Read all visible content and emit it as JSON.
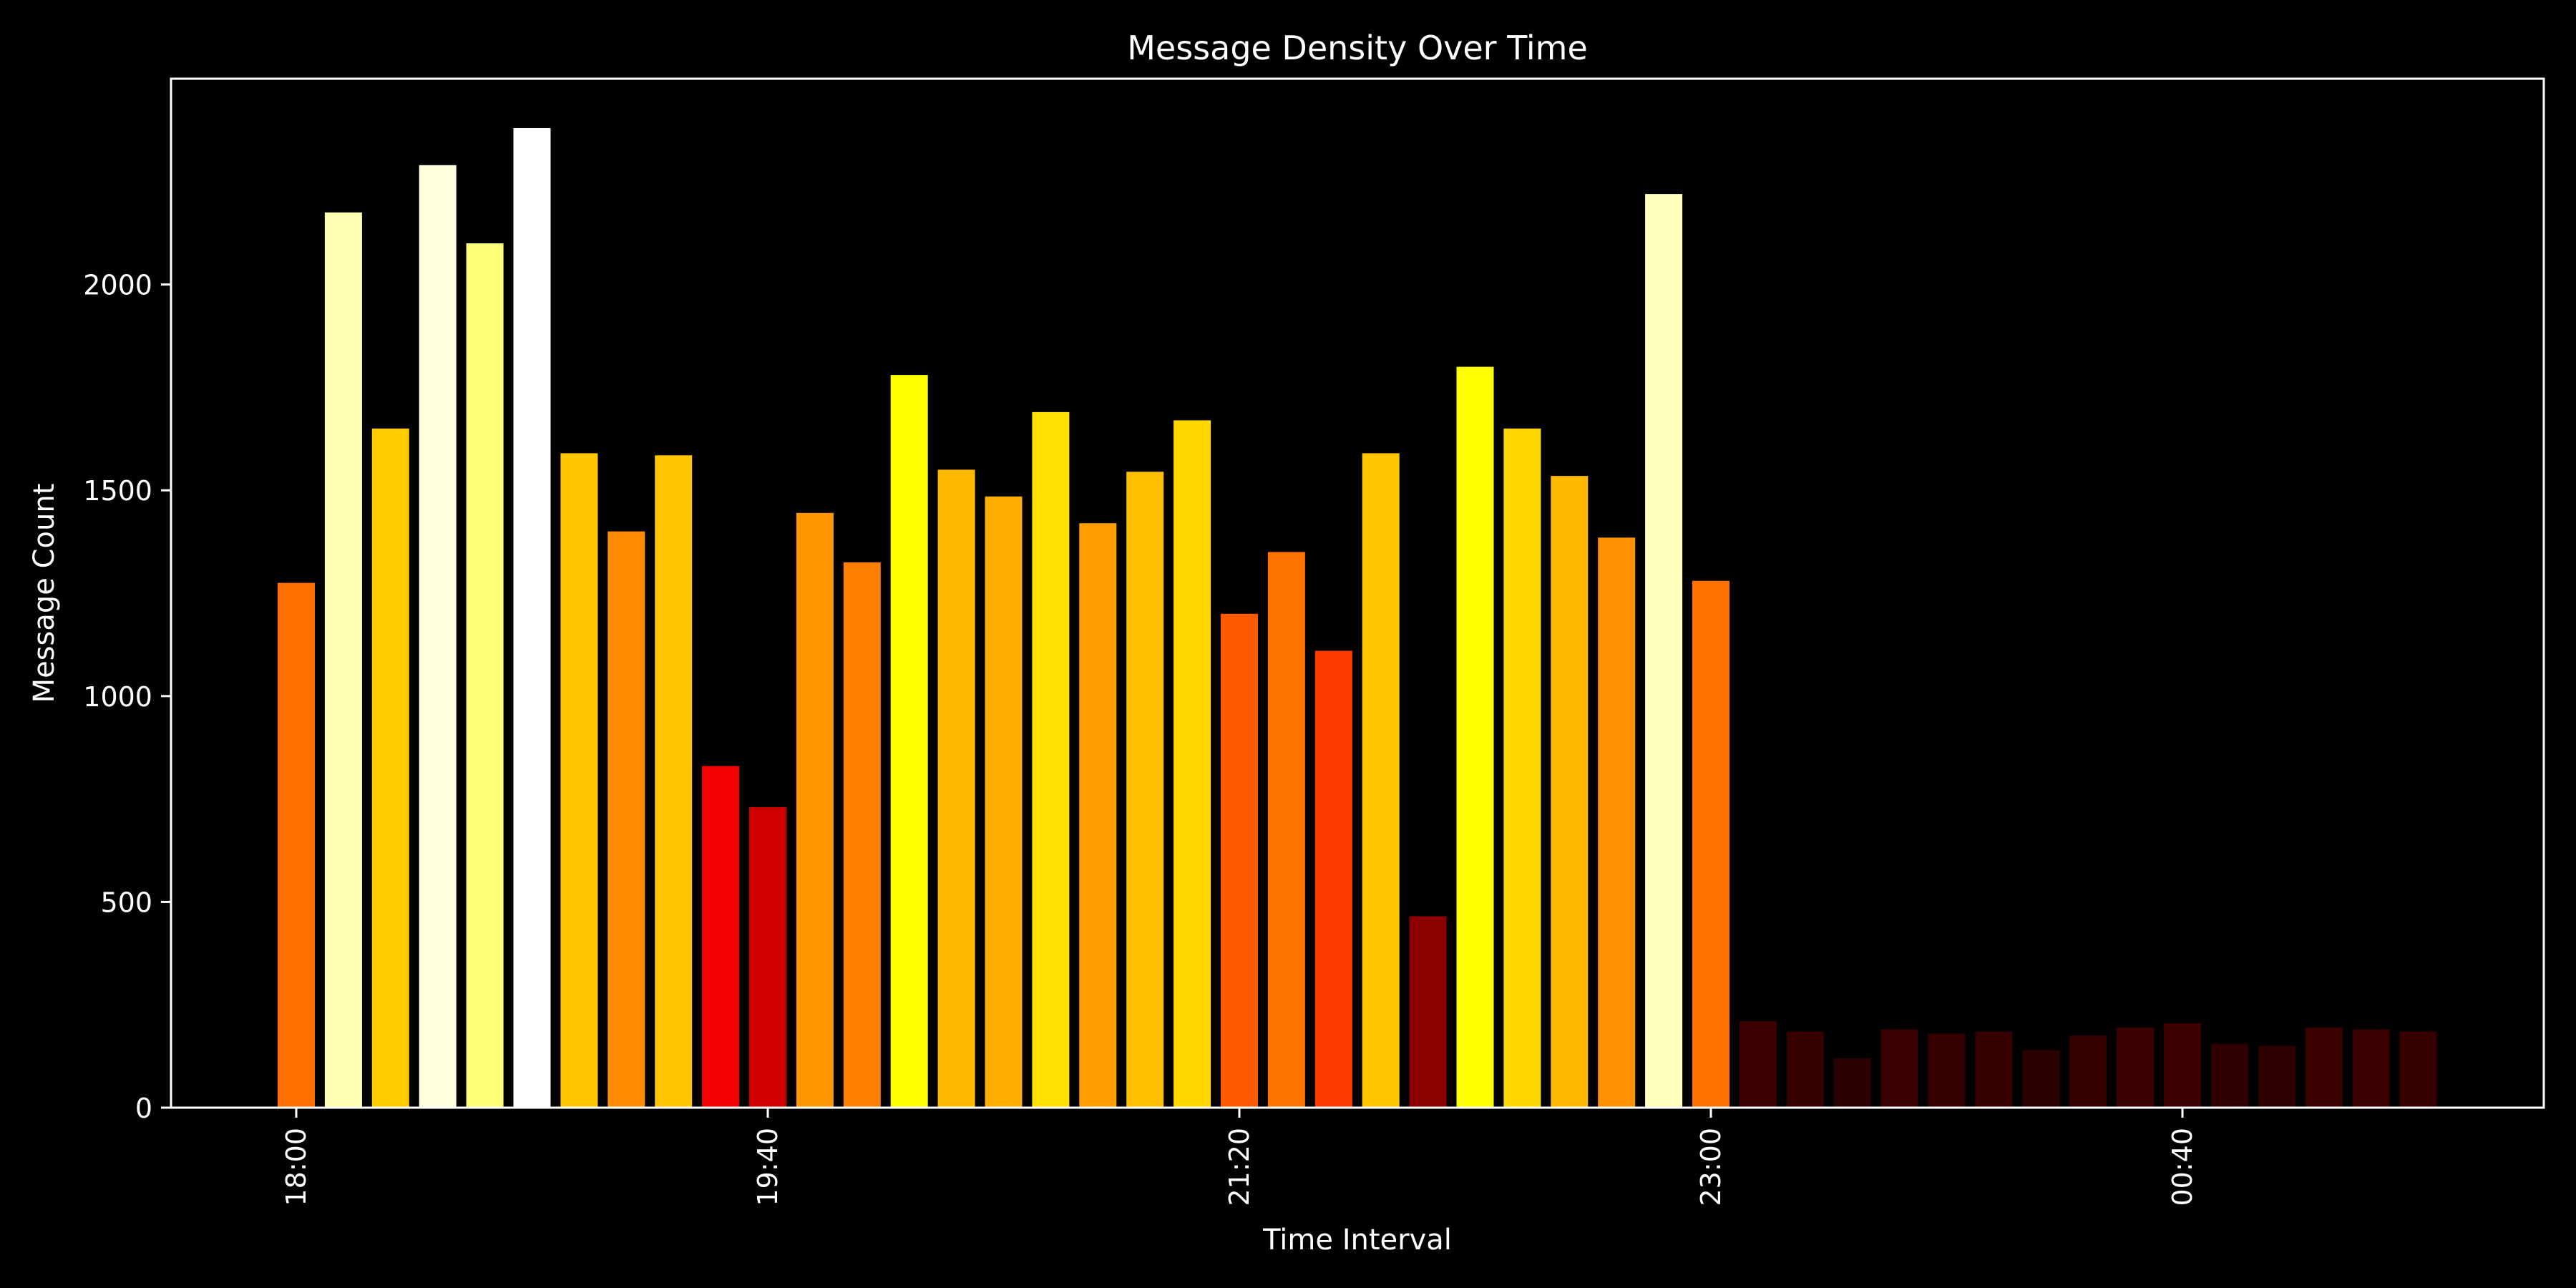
{
  "chart_data": {
    "type": "bar",
    "title": "Message Density Over Time",
    "xlabel": "Time Interval",
    "ylabel": "Message Count",
    "ylim": [
      0,
      2500
    ],
    "yticks": [
      0,
      500,
      1000,
      1500,
      2000
    ],
    "interval_minutes": 10,
    "xticks": [
      {
        "label": "18:00",
        "index": 0
      },
      {
        "label": "19:40",
        "index": 10
      },
      {
        "label": "21:20",
        "index": 20
      },
      {
        "label": "23:00",
        "index": 30
      },
      {
        "label": "00:40",
        "index": 40
      }
    ],
    "categories": [
      "18:00",
      "18:10",
      "18:20",
      "18:30",
      "18:40",
      "18:50",
      "19:00",
      "19:10",
      "19:20",
      "19:30",
      "19:40",
      "19:50",
      "20:00",
      "20:10",
      "20:20",
      "20:30",
      "20:40",
      "20:50",
      "21:00",
      "21:10",
      "21:20",
      "21:30",
      "21:40",
      "21:50",
      "22:00",
      "22:10",
      "22:20",
      "22:30",
      "22:40",
      "22:50",
      "23:00",
      "23:10",
      "23:20",
      "23:30",
      "23:40",
      "23:50",
      "00:00",
      "00:10",
      "00:20",
      "00:30",
      "00:40",
      "00:50",
      "01:00",
      "01:10",
      "01:20",
      "01:30"
    ],
    "values": [
      1275,
      2175,
      1650,
      2290,
      2100,
      2380,
      1590,
      1400,
      1585,
      830,
      730,
      1445,
      1325,
      1780,
      1550,
      1485,
      1690,
      1420,
      1545,
      1670,
      1200,
      1350,
      1110,
      1590,
      465,
      1800,
      1650,
      1535,
      1385,
      2220,
      1280,
      210,
      185,
      120,
      190,
      180,
      185,
      140,
      175,
      195,
      205,
      155,
      150,
      195,
      190,
      185
    ],
    "bar_colors": [
      "#ff7000",
      "#ffffb4",
      "#ffcc00",
      "#ffffe0",
      "#ffff78",
      "#ffffff",
      "#ffc800",
      "#ff8c00",
      "#ffc500",
      "#f50000",
      "#d00000",
      "#ff9800",
      "#ff7f00",
      "#ffff00",
      "#ffba00",
      "#ffae00",
      "#ffe000",
      "#ff9c00",
      "#ffbe00",
      "#ffd800",
      "#ff5a00",
      "#ff7300",
      "#ff3c00",
      "#ffc500",
      "#8b0000",
      "#ffff00",
      "#ffd700",
      "#ffba00",
      "#ff9200",
      "#ffffc0",
      "#ff7200",
      "#3c0000",
      "#360000",
      "#2a0000",
      "#380000",
      "#360000",
      "#370000",
      "#2d0000",
      "#350000",
      "#3b0000",
      "#3d0000",
      "#300000",
      "#2f0000",
      "#3a0000",
      "#380000",
      "#370000"
    ],
    "grid": false,
    "legend": "none",
    "background": "#000000",
    "foreground": "#ffffff"
  }
}
